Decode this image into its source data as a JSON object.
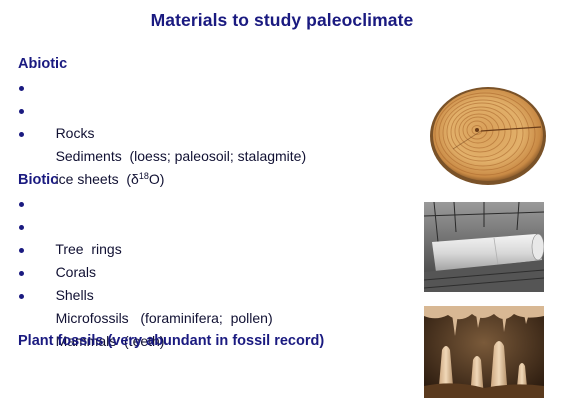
{
  "slide": {
    "title": "Materials to study paleoclimate"
  },
  "abiotic": {
    "heading": "Abiotic",
    "items": [
      {
        "text": "Rocks"
      },
      {
        "text": "Sediments  (loess; paleosoil; stalagmite)"
      },
      {
        "prefix": "ice sheets  (δ",
        "sup": "18",
        "suffix": "O)"
      }
    ]
  },
  "biotic": {
    "heading": "Biotic",
    "items": [
      {
        "text": "Tree  rings"
      },
      {
        "text": "Corals"
      },
      {
        "text": "Shells"
      },
      {
        "text": "Microfossils   (foraminifera;  pollen)"
      },
      {
        "text": "Mammals  (teeth)"
      }
    ]
  },
  "plant_fossils": {
    "heading": "Plant fossils  (very abundant in fossil record)"
  },
  "images": [
    {
      "name": "tree-ring-cross-section-photo",
      "subject": "tree rings"
    },
    {
      "name": "ice-core-photo",
      "subject": "ice core"
    },
    {
      "name": "cave-stalagmite-photo",
      "subject": "cave stalagmites"
    }
  ]
}
